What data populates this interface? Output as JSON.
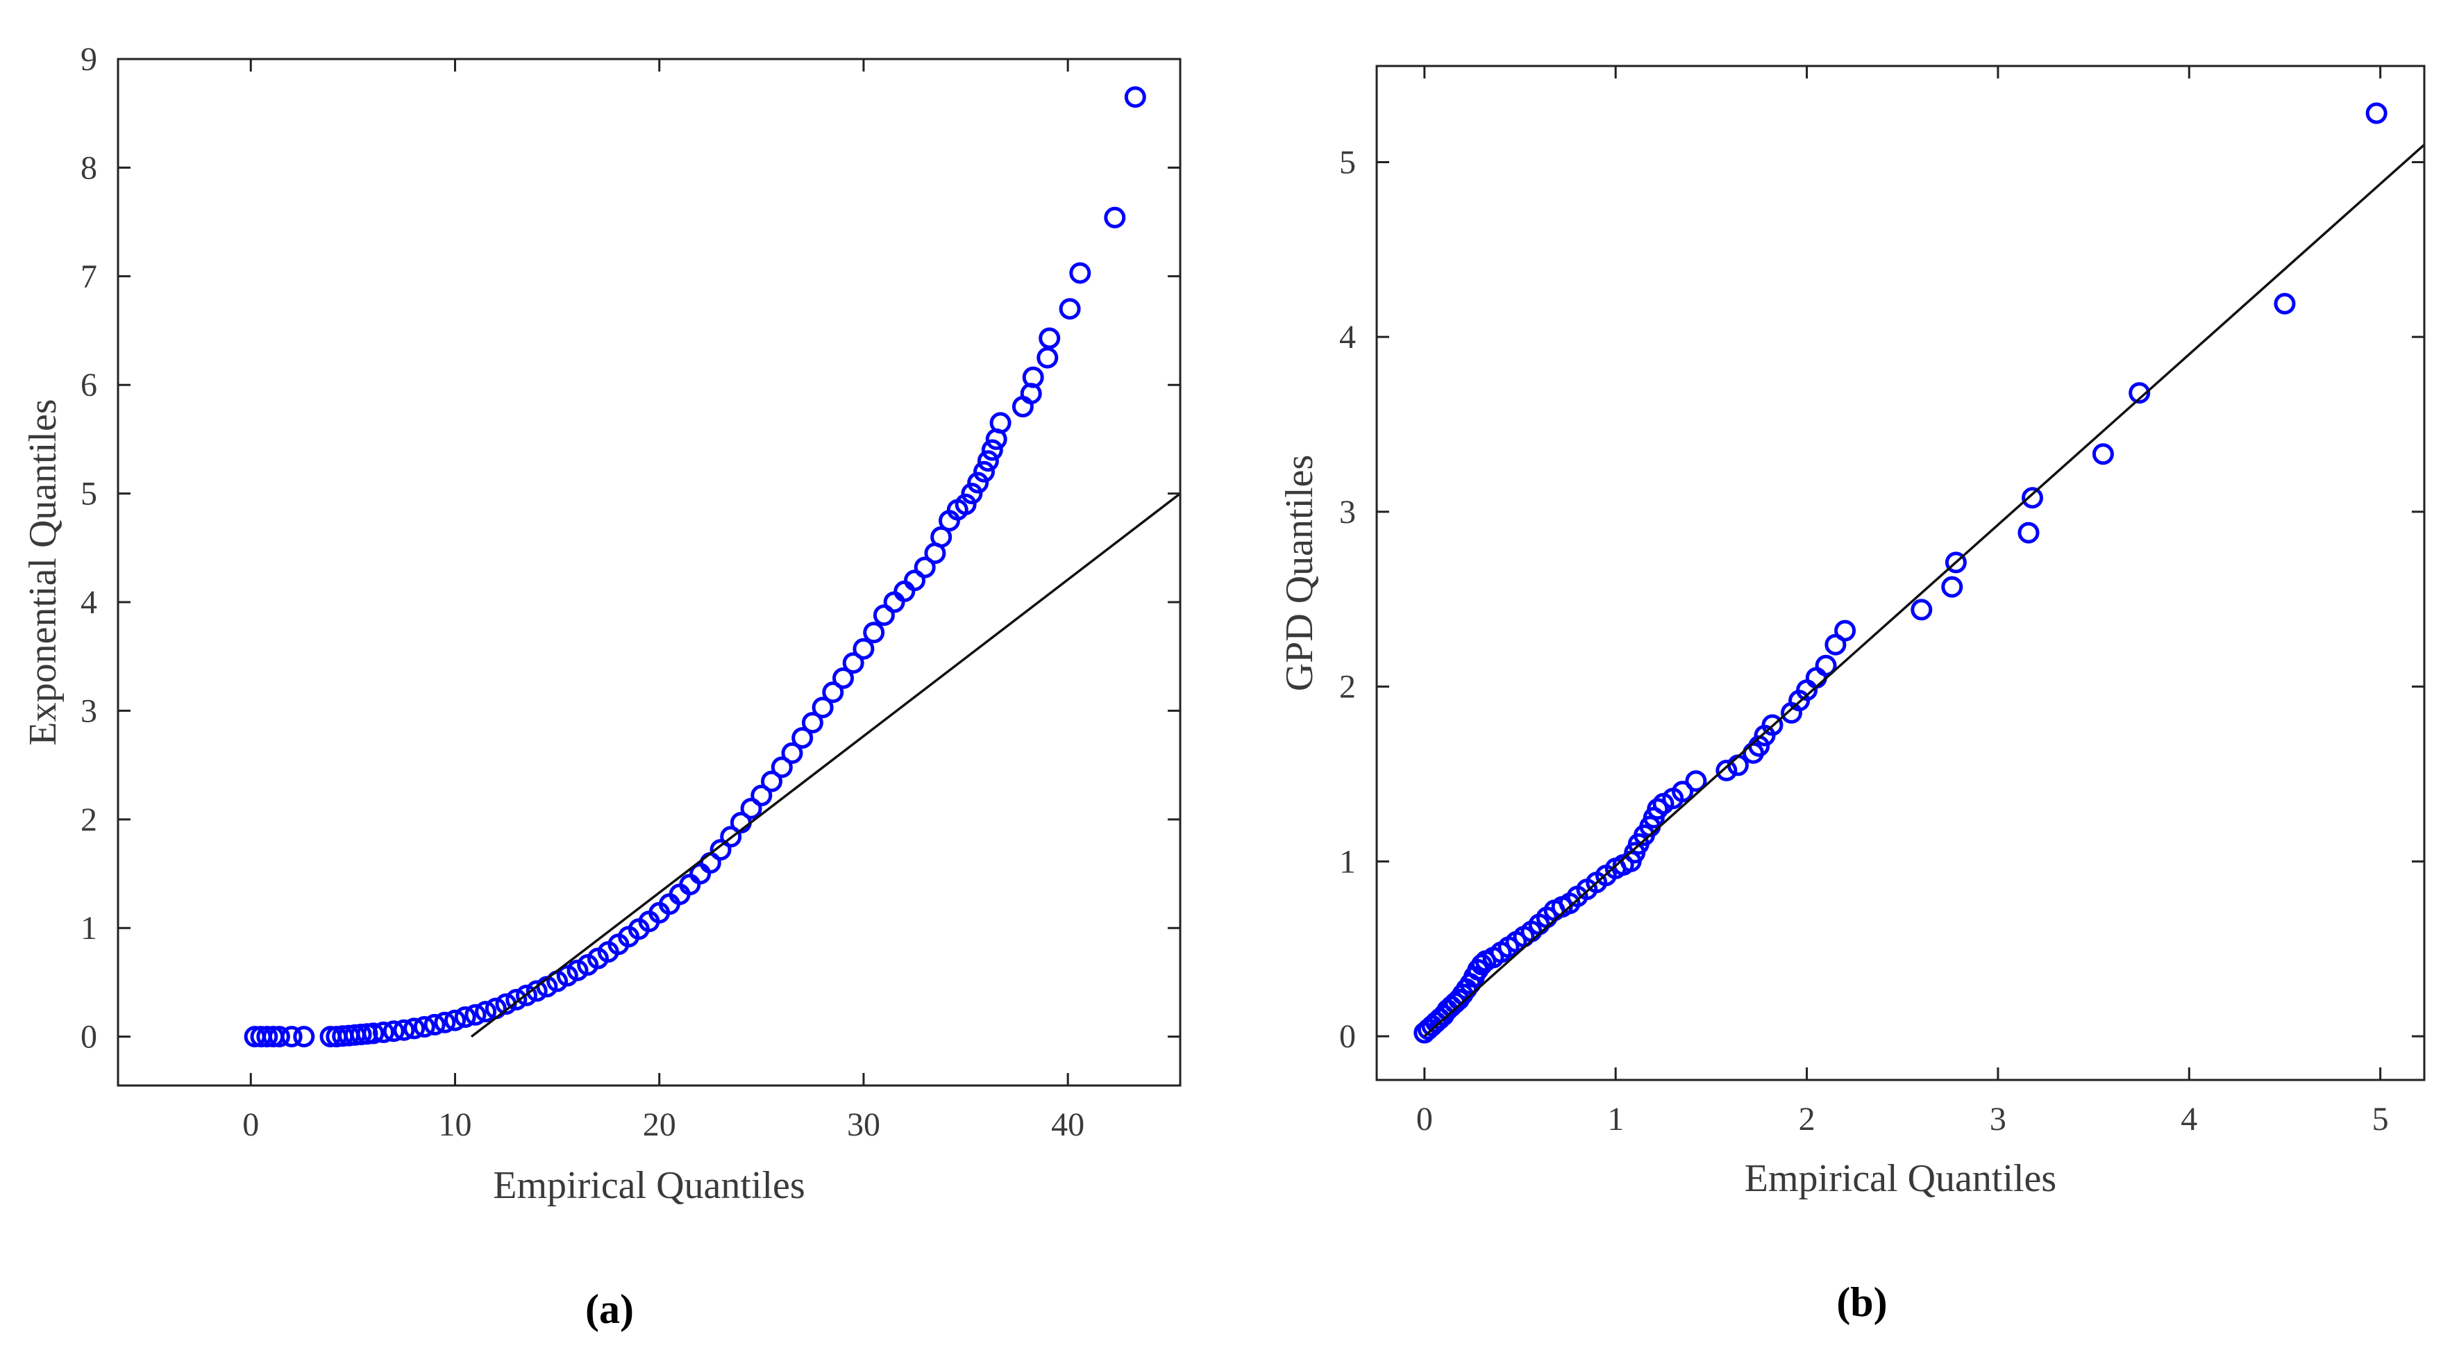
{
  "chart_data": [
    {
      "type": "scatter",
      "panel_label": "(a)",
      "xlabel": "Empirical Quantiles",
      "ylabel": "Exponential Quantiles",
      "xlim": [
        -6.5,
        45.5
      ],
      "ylim": [
        -0.45,
        9.0
      ],
      "xticks": [
        0,
        10,
        20,
        30,
        40
      ],
      "yticks": [
        0,
        1,
        2,
        3,
        4,
        5,
        6,
        7,
        8,
        9
      ],
      "grid": false,
      "marker": "circle-open",
      "point_color": "#0000ff",
      "line_color": "#111111",
      "reference_line": {
        "x": [
          10.8,
          45.5
        ],
        "y": [
          0.0,
          5.0
        ]
      },
      "points": {
        "x": [
          0.2,
          0.5,
          0.8,
          1.1,
          1.4,
          2.0,
          2.6,
          3.9,
          4.2,
          4.5,
          4.8,
          5.1,
          5.4,
          5.7,
          6.0,
          6.5,
          7.0,
          7.5,
          8.0,
          8.5,
          9.0,
          9.5,
          10.0,
          10.5,
          11.0,
          11.5,
          12.0,
          12.5,
          13.0,
          13.5,
          14.0,
          14.5,
          15.0,
          15.5,
          16.0,
          16.5,
          17.0,
          17.5,
          18.0,
          18.5,
          19.0,
          19.5,
          20.0,
          20.5,
          21.0,
          21.5,
          22.0,
          22.5,
          23.0,
          23.5,
          24.0,
          24.5,
          25.0,
          25.5,
          26.0,
          26.5,
          27.0,
          27.5,
          28.0,
          28.5,
          29.0,
          29.5,
          30.0,
          30.5,
          31.0,
          31.5,
          32.0,
          32.5,
          33.0,
          33.5,
          33.8,
          34.2,
          34.6,
          35.0,
          35.3,
          35.6,
          35.9,
          36.1,
          36.3,
          36.5,
          36.7,
          37.8,
          38.2,
          38.3,
          39.0,
          39.1,
          40.1,
          40.6,
          42.3,
          43.3
        ],
        "y": [
          0,
          0,
          0,
          0,
          0,
          0,
          0,
          0,
          0,
          0.005,
          0.01,
          0.015,
          0.02,
          0.025,
          0.03,
          0.04,
          0.05,
          0.06,
          0.075,
          0.09,
          0.11,
          0.13,
          0.15,
          0.18,
          0.2,
          0.23,
          0.26,
          0.3,
          0.34,
          0.38,
          0.42,
          0.46,
          0.51,
          0.56,
          0.61,
          0.66,
          0.72,
          0.78,
          0.85,
          0.92,
          0.99,
          1.06,
          1.14,
          1.22,
          1.31,
          1.4,
          1.5,
          1.6,
          1.72,
          1.84,
          1.97,
          2.1,
          2.22,
          2.35,
          2.48,
          2.61,
          2.75,
          2.89,
          3.03,
          3.17,
          3.3,
          3.44,
          3.57,
          3.72,
          3.88,
          4.0,
          4.1,
          4.2,
          4.32,
          4.45,
          4.6,
          4.75,
          4.85,
          4.9,
          5.0,
          5.1,
          5.2,
          5.3,
          5.4,
          5.5,
          5.65,
          5.8,
          5.92,
          6.07,
          6.25,
          6.43,
          6.7,
          7.03,
          7.54,
          8.65
        ]
      }
    },
    {
      "type": "scatter",
      "panel_label": "(b)",
      "xlabel": "Empirical Quantiles",
      "ylabel": "GPD Quantiles",
      "xlim": [
        -0.25,
        5.23
      ],
      "ylim": [
        -0.25,
        5.55
      ],
      "xticks": [
        0,
        1,
        2,
        3,
        4,
        5
      ],
      "yticks": [
        0,
        1,
        2,
        3,
        4,
        5
      ],
      "grid": false,
      "marker": "circle-open",
      "point_color": "#0000ff",
      "line_color": "#111111",
      "reference_line": {
        "x": [
          0.0,
          5.23
        ],
        "y": [
          0.0,
          5.1
        ]
      },
      "points": {
        "x": [
          0.0,
          0.02,
          0.04,
          0.06,
          0.08,
          0.1,
          0.12,
          0.14,
          0.16,
          0.18,
          0.2,
          0.22,
          0.24,
          0.26,
          0.28,
          0.3,
          0.32,
          0.36,
          0.4,
          0.44,
          0.48,
          0.52,
          0.56,
          0.6,
          0.64,
          0.68,
          0.72,
          0.76,
          0.8,
          0.85,
          0.9,
          0.95,
          1.0,
          1.04,
          1.08,
          1.1,
          1.12,
          1.15,
          1.18,
          1.2,
          1.22,
          1.25,
          1.3,
          1.35,
          1.42,
          1.58,
          1.64,
          1.72,
          1.75,
          1.78,
          1.82,
          1.92,
          1.96,
          2.0,
          2.05,
          2.1,
          2.15,
          2.2,
          2.6,
          2.76,
          2.78,
          3.16,
          3.18,
          3.55,
          3.74,
          4.5,
          4.98
        ],
        "y": [
          0.02,
          0.04,
          0.06,
          0.08,
          0.1,
          0.12,
          0.15,
          0.17,
          0.19,
          0.21,
          0.24,
          0.27,
          0.3,
          0.34,
          0.38,
          0.41,
          0.43,
          0.45,
          0.48,
          0.51,
          0.54,
          0.57,
          0.6,
          0.64,
          0.68,
          0.72,
          0.74,
          0.76,
          0.8,
          0.84,
          0.88,
          0.92,
          0.96,
          0.98,
          1.0,
          1.05,
          1.1,
          1.15,
          1.2,
          1.25,
          1.3,
          1.33,
          1.36,
          1.4,
          1.46,
          1.52,
          1.55,
          1.62,
          1.66,
          1.72,
          1.78,
          1.85,
          1.92,
          1.98,
          2.05,
          2.12,
          2.24,
          2.32,
          2.44,
          2.57,
          2.71,
          2.88,
          3.08,
          3.33,
          3.68,
          4.19,
          5.28
        ]
      }
    }
  ]
}
